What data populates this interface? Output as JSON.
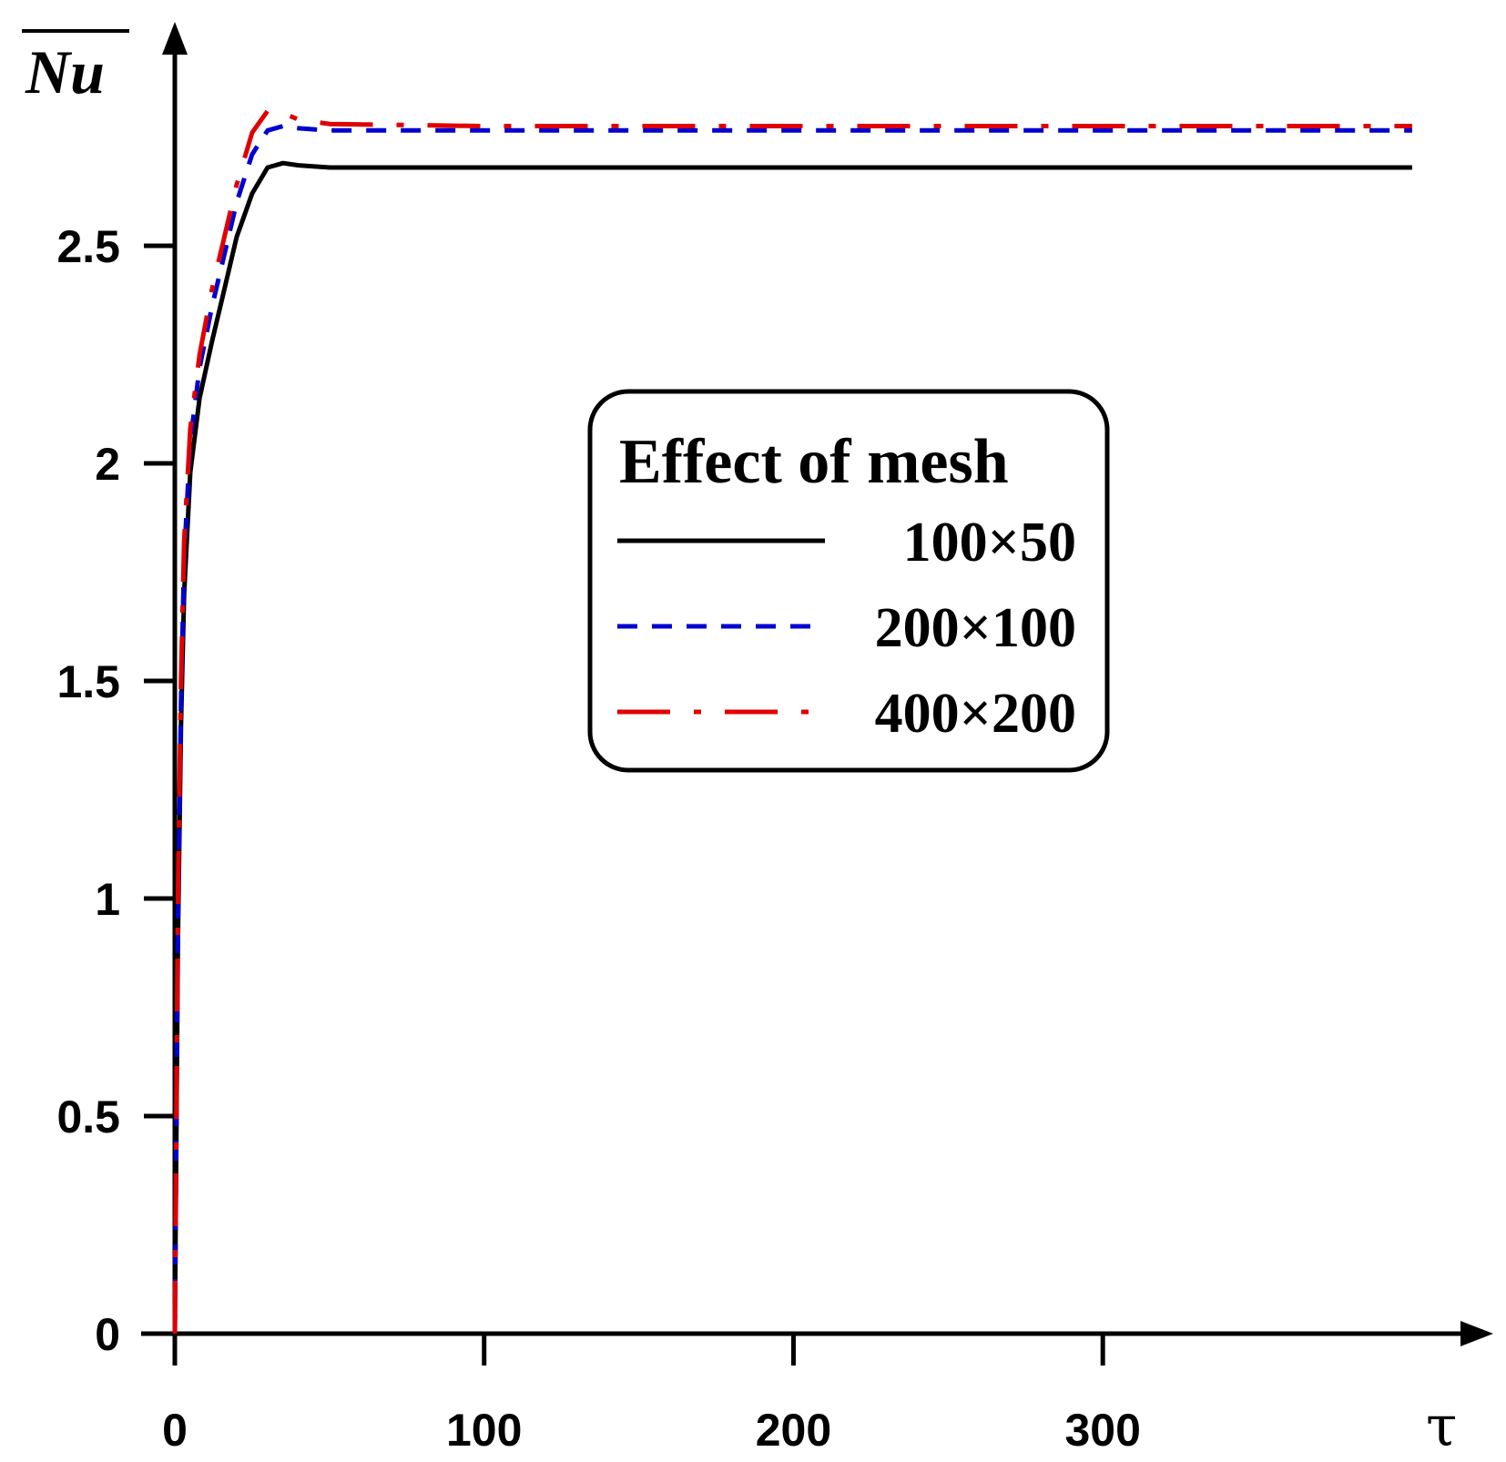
{
  "chart_data": {
    "type": "line",
    "title": "",
    "xlabel": "τ",
    "ylabel": "Nu",
    "xlim": [
      0,
      400
    ],
    "ylim": [
      0,
      2.9
    ],
    "x_ticks": [
      0,
      100,
      200,
      300
    ],
    "x_tick_labels": [
      "0",
      "100",
      "200",
      "300"
    ],
    "y_ticks": [
      0,
      0.5,
      1,
      1.5,
      2,
      2.5
    ],
    "y_tick_labels": [
      "0",
      "0.5",
      "1",
      "1.5",
      "2",
      "2.5"
    ],
    "grid": false,
    "legend": {
      "title": "Effect of mesh",
      "position": "center-right"
    },
    "series": [
      {
        "name": "100×50",
        "color": "#000000",
        "style": "solid",
        "x": [
          0,
          1,
          2,
          3,
          5,
          8,
          12,
          16,
          20,
          25,
          30,
          35,
          40,
          50,
          100,
          200,
          300,
          400
        ],
        "y": [
          0,
          0.9,
          1.4,
          1.7,
          1.98,
          2.15,
          2.28,
          2.4,
          2.52,
          2.62,
          2.68,
          2.69,
          2.685,
          2.68,
          2.68,
          2.68,
          2.68,
          2.68
        ]
      },
      {
        "name": "200×100",
        "color": "#0000d0",
        "style": "dashed",
        "x": [
          0,
          1,
          2,
          3,
          5,
          8,
          12,
          16,
          20,
          25,
          30,
          35,
          40,
          50,
          100,
          200,
          300,
          400
        ],
        "y": [
          0,
          0.95,
          1.45,
          1.78,
          2.05,
          2.22,
          2.36,
          2.48,
          2.6,
          2.71,
          2.765,
          2.775,
          2.77,
          2.765,
          2.765,
          2.765,
          2.765,
          2.765
        ]
      },
      {
        "name": "400×200",
        "color": "#e00000",
        "style": "dashdot",
        "x": [
          0,
          1,
          2,
          3,
          5,
          8,
          12,
          16,
          20,
          25,
          30,
          35,
          40,
          50,
          100,
          200,
          300,
          400
        ],
        "y": [
          0,
          1.0,
          1.5,
          1.82,
          2.08,
          2.25,
          2.4,
          2.52,
          2.64,
          2.76,
          2.81,
          2.805,
          2.79,
          2.78,
          2.775,
          2.775,
          2.775,
          2.775
        ]
      }
    ]
  }
}
